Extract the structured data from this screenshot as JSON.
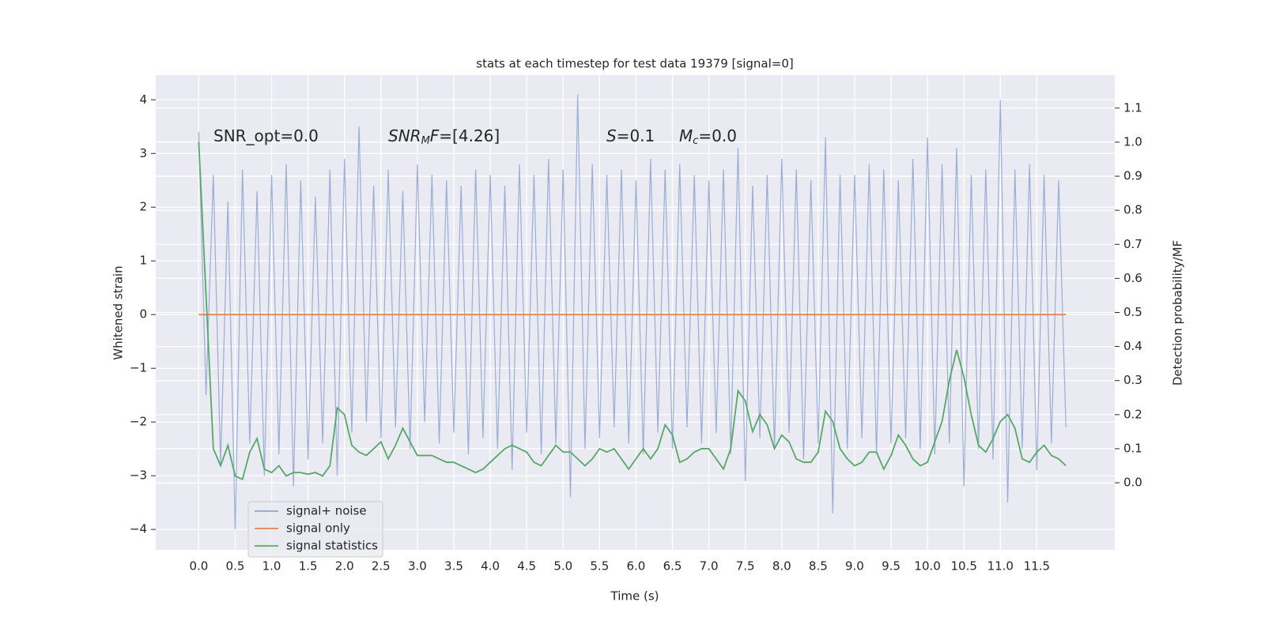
{
  "chart_data": {
    "type": "line",
    "title": "stats at each timestep for test data 19379 [signal=0]",
    "xlabel": "Time (s)",
    "ylabel": "Whitened strain",
    "y2label": "Detection probability/MF",
    "annotations": [
      {
        "parts": [
          {
            "text": "SNR_opt=0.0"
          }
        ]
      },
      {
        "parts": [
          {
            "text": "SNR",
            "italic": true
          },
          {
            "text": "M",
            "italic": true,
            "sub": true
          },
          {
            "text": "F",
            "italic": true
          },
          {
            "text": "=[4.26]"
          }
        ]
      },
      {
        "parts": [
          {
            "text": "S",
            "italic": true
          },
          {
            "text": "=0.1"
          }
        ]
      },
      {
        "parts": [
          {
            "text": "M",
            "italic": true
          },
          {
            "text": "c",
            "italic": true,
            "sub": true
          },
          {
            "text": "=0.0"
          }
        ]
      }
    ],
    "x": [
      0.0,
      0.1,
      0.2,
      0.3,
      0.4,
      0.5,
      0.6,
      0.7,
      0.8,
      0.9,
      1.0,
      1.1,
      1.2,
      1.3,
      1.4,
      1.5,
      1.6,
      1.7,
      1.8,
      1.9,
      2.0,
      2.1,
      2.2,
      2.3,
      2.4,
      2.5,
      2.6,
      2.7,
      2.8,
      2.9,
      3.0,
      3.1,
      3.2,
      3.3,
      3.4,
      3.5,
      3.6,
      3.7,
      3.8,
      3.9,
      4.0,
      4.1,
      4.2,
      4.3,
      4.4,
      4.5,
      4.6,
      4.7,
      4.8,
      4.9,
      5.0,
      5.1,
      5.2,
      5.3,
      5.4,
      5.5,
      5.6,
      5.7,
      5.8,
      5.9,
      6.0,
      6.1,
      6.2,
      6.3,
      6.4,
      6.5,
      6.6,
      6.7,
      6.8,
      6.9,
      7.0,
      7.1,
      7.2,
      7.3,
      7.4,
      7.5,
      7.6,
      7.7,
      7.8,
      7.9,
      8.0,
      8.1,
      8.2,
      8.3,
      8.4,
      8.5,
      8.6,
      8.7,
      8.8,
      8.9,
      9.0,
      9.1,
      9.2,
      9.3,
      9.4,
      9.5,
      9.6,
      9.7,
      9.8,
      9.9,
      10.0,
      10.1,
      10.2,
      10.3,
      10.4,
      10.5,
      10.6,
      10.7,
      10.8,
      10.9,
      11.0,
      11.1,
      11.2,
      11.3,
      11.4,
      11.5,
      11.6,
      11.7,
      11.8,
      11.9
    ],
    "series": [
      {
        "name": "signal+ noise",
        "color": "#92a6d0",
        "values": [
          3.4,
          -1.5,
          2.6,
          -2.8,
          2.1,
          -4.0,
          2.7,
          -2.4,
          2.3,
          -3.0,
          2.6,
          -2.6,
          2.8,
          -3.2,
          2.5,
          -2.7,
          2.2,
          -2.4,
          2.7,
          -3.0,
          2.9,
          -2.2,
          3.5,
          -2.0,
          2.4,
          -2.3,
          2.7,
          -2.1,
          2.3,
          -2.5,
          2.8,
          -2.0,
          2.6,
          -2.4,
          2.5,
          -2.2,
          2.4,
          -2.6,
          2.7,
          -2.3,
          2.6,
          -2.5,
          2.4,
          -2.9,
          2.8,
          -2.2,
          2.6,
          -2.6,
          2.9,
          -2.4,
          2.7,
          -3.4,
          4.1,
          -2.5,
          2.8,
          -2.3,
          2.6,
          -2.1,
          2.7,
          -2.4,
          2.5,
          -2.6,
          2.9,
          -2.2,
          2.7,
          -2.5,
          2.8,
          -2.1,
          2.6,
          -2.4,
          2.5,
          -2.2,
          2.7,
          -2.6,
          3.1,
          -3.1,
          2.4,
          -2.3,
          2.6,
          -2.5,
          2.9,
          -2.2,
          2.7,
          -2.7,
          2.5,
          -2.4,
          3.3,
          -3.7,
          2.6,
          -2.5,
          2.6,
          -2.3,
          2.8,
          -2.6,
          2.7,
          -2.4,
          2.5,
          -2.3,
          2.9,
          -2.5,
          3.3,
          -2.6,
          2.8,
          -2.4,
          3.1,
          -3.2,
          2.6,
          -2.5,
          2.7,
          -2.7,
          4.0,
          -3.5,
          2.7,
          -2.5,
          2.8,
          -2.9,
          2.6,
          -2.4,
          2.5,
          -2.1
        ]
      },
      {
        "name": "signal only",
        "color": "#dd8452",
        "values": [
          0,
          0,
          0,
          0,
          0,
          0,
          0,
          0,
          0,
          0,
          0,
          0,
          0,
          0,
          0,
          0,
          0,
          0,
          0,
          0,
          0,
          0,
          0,
          0,
          0,
          0,
          0,
          0,
          0,
          0,
          0,
          0,
          0,
          0,
          0,
          0,
          0,
          0,
          0,
          0,
          0,
          0,
          0,
          0,
          0,
          0,
          0,
          0,
          0,
          0,
          0,
          0,
          0,
          0,
          0,
          0,
          0,
          0,
          0,
          0,
          0,
          0,
          0,
          0,
          0,
          0,
          0,
          0,
          0,
          0,
          0,
          0,
          0,
          0,
          0,
          0,
          0,
          0,
          0,
          0,
          0,
          0,
          0,
          0,
          0,
          0,
          0,
          0,
          0,
          0,
          0,
          0,
          0,
          0,
          0,
          0,
          0,
          0,
          0,
          0,
          0,
          0,
          0,
          0,
          0,
          0,
          0,
          0,
          0,
          0,
          0,
          0,
          0,
          0,
          0,
          0,
          0,
          0,
          0,
          0
        ]
      },
      {
        "name": "signal statistics",
        "color": "#55a868",
        "axis": "y2",
        "values": [
          1.0,
          0.55,
          0.1,
          0.05,
          0.11,
          0.02,
          0.01,
          0.09,
          0.13,
          0.04,
          0.03,
          0.05,
          0.02,
          0.03,
          0.03,
          0.025,
          0.03,
          0.02,
          0.05,
          0.22,
          0.2,
          0.11,
          0.09,
          0.08,
          0.1,
          0.12,
          0.07,
          0.11,
          0.16,
          0.12,
          0.08,
          0.08,
          0.08,
          0.07,
          0.06,
          0.06,
          0.05,
          0.04,
          0.03,
          0.04,
          0.06,
          0.08,
          0.1,
          0.11,
          0.1,
          0.09,
          0.06,
          0.05,
          0.08,
          0.11,
          0.09,
          0.09,
          0.07,
          0.05,
          0.07,
          0.1,
          0.09,
          0.1,
          0.07,
          0.04,
          0.07,
          0.1,
          0.07,
          0.1,
          0.17,
          0.14,
          0.06,
          0.07,
          0.09,
          0.1,
          0.1,
          0.07,
          0.04,
          0.1,
          0.27,
          0.24,
          0.15,
          0.2,
          0.17,
          0.1,
          0.14,
          0.12,
          0.07,
          0.06,
          0.06,
          0.09,
          0.21,
          0.18,
          0.1,
          0.07,
          0.05,
          0.06,
          0.09,
          0.09,
          0.04,
          0.08,
          0.14,
          0.11,
          0.07,
          0.05,
          0.06,
          0.12,
          0.18,
          0.3,
          0.39,
          0.31,
          0.2,
          0.11,
          0.09,
          0.13,
          0.18,
          0.2,
          0.16,
          0.07,
          0.06,
          0.09,
          0.11,
          0.08,
          0.07,
          0.05
        ]
      }
    ],
    "xlim": [
      -0.59,
      12.57
    ],
    "xticks": [
      {
        "value": 0,
        "label": "0.0"
      },
      0.5,
      {
        "value": 1,
        "label": "1.0"
      },
      1.5,
      {
        "value": 2,
        "label": "2.0"
      },
      2.5,
      {
        "value": 3,
        "label": "3.0"
      },
      3.5,
      {
        "value": 4,
        "label": "4.0"
      },
      4.5,
      {
        "value": 5,
        "label": "5.0"
      },
      5.5,
      {
        "value": 6,
        "label": "6.0"
      },
      6.5,
      {
        "value": 7,
        "label": "7.0"
      },
      7.5,
      {
        "value": 8,
        "label": "8.0"
      },
      8.5,
      {
        "value": 9,
        "label": "9.0"
      },
      9.5,
      {
        "value": 10,
        "label": "10.0"
      },
      10.5,
      {
        "value": 11,
        "label": "11.0"
      },
      11.5
    ],
    "ylim": [
      -4.38,
      4.46
    ],
    "yticks": [
      {
        "value": -4,
        "label": "−4"
      },
      {
        "value": -3,
        "label": "−3"
      },
      {
        "value": -2,
        "label": "−2"
      },
      {
        "value": -1,
        "label": "−1"
      },
      0,
      1,
      2,
      3,
      4
    ],
    "y2lim": [
      -0.197,
      1.197
    ],
    "y2ticks": [
      {
        "value": 0,
        "label": "0.0"
      },
      0.1,
      0.2,
      0.3,
      0.4,
      0.5,
      0.6,
      0.7,
      0.8,
      0.9,
      {
        "value": 1,
        "label": "1.0"
      },
      1.1
    ],
    "grid": true,
    "legend": "lower left"
  }
}
